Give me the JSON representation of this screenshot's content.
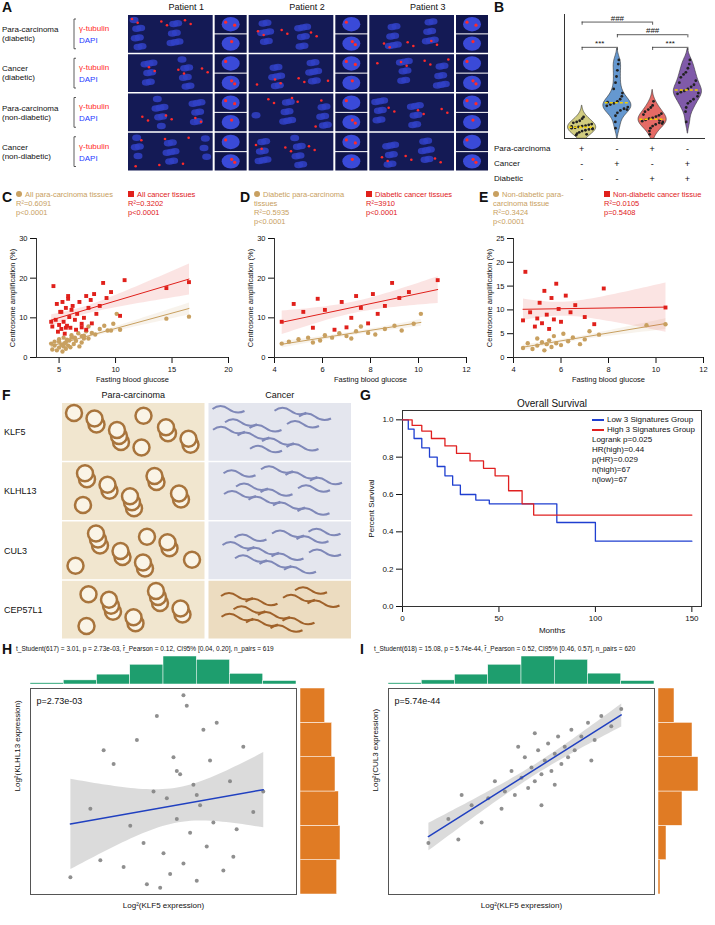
{
  "chart_data": [
    {
      "panel": "A",
      "type": "images",
      "columns": [
        "Patient 1",
        "Patient 2",
        "Patient 3"
      ],
      "rows": [
        "Para-carcinoma (diabetic)",
        "Cancer (diabetic)",
        "Para-carcinoma (non-diabetic)",
        "Cancer (non-diabetic)"
      ],
      "channels": [
        {
          "name": "γ-tubulin",
          "color": "#ff2a2a"
        },
        {
          "name": "DAPI",
          "color": "#2a3cff"
        }
      ]
    },
    {
      "panel": "B",
      "type": "violin",
      "ylim": [
        0,
        30
      ],
      "tick_labels": false,
      "groups": [
        {
          "color": "#c9c36a",
          "values": [
            0.8,
            1.2,
            1.5,
            1.8,
            2.0,
            2.2,
            2.3,
            2.5,
            2.6,
            2.8,
            3.0,
            3.1,
            3.3,
            3.5,
            3.8,
            4.0,
            4.3,
            4.8,
            5.2,
            1.0,
            2.4,
            2.9
          ]
        },
        {
          "color": "#4a86c8",
          "values": [
            2.5,
            4.0,
            5.5,
            6.2,
            6.8,
            7.2,
            7.6,
            7.9,
            8.2,
            8.5,
            9.0,
            9.5,
            10.2,
            11.0,
            12.0,
            13.5,
            15.0,
            16.5,
            18.0,
            19.0,
            7.0,
            8.8
          ]
        },
        {
          "color": "#e2504a",
          "values": [
            1.0,
            1.8,
            2.5,
            3.0,
            3.4,
            3.8,
            4.0,
            4.2,
            4.5,
            4.8,
            5.0,
            5.3,
            5.6,
            6.0,
            6.5,
            7.0,
            7.5,
            8.0,
            9.0,
            4.4,
            3.6,
            5.8
          ]
        },
        {
          "color": "#6a3d9a",
          "values": [
            4.0,
            6.5,
            7.5,
            8.5,
            9.0,
            9.5,
            10.2,
            10.8,
            11.2,
            11.5,
            12.0,
            12.5,
            13.0,
            14.0,
            14.8,
            15.5,
            16.0,
            17.0,
            18.0,
            19.0,
            11.0,
            13.5
          ]
        }
      ],
      "table": [
        {
          "label": "Para-carcinoma",
          "marks": [
            "+",
            "-",
            "+",
            "-"
          ]
        },
        {
          "label": "Cancer",
          "marks": [
            "-",
            "+",
            "-",
            "+"
          ]
        },
        {
          "label": "Diabetic",
          "marks": [
            "-",
            "-",
            "+",
            "+"
          ]
        }
      ],
      "comparisons": [
        {
          "from": 0,
          "to": 1,
          "label": "***"
        },
        {
          "from": 2,
          "to": 3,
          "label": "***"
        },
        {
          "from": 1,
          "to": 3,
          "label": "###"
        },
        {
          "from": 0,
          "to": 2,
          "label": "###"
        }
      ]
    },
    {
      "panel": "C",
      "type": "scatter",
      "xlabel": "Fasting blood glucose",
      "ylabel": "Centrosome amplification (%)",
      "xlim": [
        3,
        20
      ],
      "xticks": [
        5,
        10,
        15,
        20
      ],
      "ylim": [
        0,
        30
      ],
      "yticks": [
        0,
        10,
        20,
        30
      ],
      "series": [
        {
          "name": "All para-carcinoma tissues",
          "color": "#c8a060",
          "marker": "circle",
          "annotations": [
            "R²=0.6091",
            "p<0.0001"
          ],
          "x": [
            4.3,
            4.6,
            5.0,
            5.4,
            5.6,
            5.9,
            6.1,
            6.4,
            6.7,
            7.0,
            7.2,
            7.4,
            7.6,
            7.9,
            8.2,
            8.6,
            9.0,
            9.3,
            9.8,
            10.1,
            4.4,
            4.6,
            4.8,
            5.0,
            5.0,
            5.2,
            5.3,
            5.4,
            5.5,
            5.6,
            5.7,
            5.8,
            6.0,
            6.1,
            6.3,
            6.5,
            6.8,
            7.0,
            7.2,
            7.6,
            9.6,
            10.4,
            14.5,
            16.5
          ],
          "y": [
            3.5,
            4.0,
            4.6,
            5.0,
            3.8,
            4.3,
            5.6,
            5.0,
            6.1,
            5.4,
            4.8,
            6.6,
            7.8,
            6.2,
            5.8,
            7.2,
            8.0,
            6.8,
            8.5,
            11.0,
            2.0,
            3.0,
            1.8,
            2.5,
            4.0,
            3.2,
            1.5,
            2.8,
            3.6,
            2.2,
            4.5,
            3.0,
            2.6,
            5.0,
            3.4,
            4.2,
            2.8,
            3.8,
            5.5,
            4.8,
            6.8,
            7.0,
            9.8,
            10.3
          ]
        },
        {
          "name": "All cancer tissues",
          "color": "#e0201b",
          "marker": "square",
          "annotations": [
            "R²=0.3202",
            "p<0.0001"
          ],
          "x": [
            4.3,
            4.8,
            5.2,
            5.6,
            5.8,
            6.1,
            6.5,
            6.8,
            7.0,
            7.2,
            7.4,
            7.6,
            7.9,
            8.1,
            8.3,
            8.6,
            8.9,
            9.2,
            9.6,
            10.8,
            4.4,
            4.5,
            4.7,
            4.9,
            5.0,
            5.1,
            5.2,
            5.3,
            5.4,
            5.5,
            5.6,
            5.7,
            5.8,
            5.9,
            6.0,
            6.2,
            6.4,
            6.6,
            7.0,
            7.4,
            7.8,
            10.4,
            14.5,
            16.5
          ],
          "y": [
            9.0,
            13.5,
            11.5,
            7.5,
            14.8,
            12.0,
            7.0,
            14.0,
            7.6,
            10.0,
            15.5,
            12.5,
            8.6,
            16.0,
            11.0,
            13.0,
            18.8,
            15.0,
            16.5,
            19.5,
            7.8,
            18.0,
            9.5,
            6.5,
            8.2,
            11.5,
            7.2,
            14.0,
            9.0,
            6.0,
            12.5,
            8.0,
            15.5,
            10.2,
            7.5,
            13.0,
            9.5,
            11.0,
            8.5,
            7.0,
            14.5,
            10.5,
            17.5,
            19.0
          ]
        }
      ]
    },
    {
      "panel": "D",
      "type": "scatter",
      "xlabel": "Fasting blood glucose",
      "ylabel": "Centrosome amplification (%)",
      "xlim": [
        4,
        12
      ],
      "xticks": [
        4,
        6,
        8,
        10,
        12
      ],
      "ylim": [
        0,
        30
      ],
      "yticks": [
        0,
        10,
        20,
        30
      ],
      "series": [
        {
          "name": "Diabetic para-carcinoma tissues",
          "color": "#c8a060",
          "marker": "circle",
          "annotations": [
            "R²=0.5935",
            "p<0.0001"
          ],
          "x": [
            4.3,
            4.6,
            5.0,
            5.4,
            5.6,
            5.9,
            6.1,
            6.4,
            6.7,
            7.0,
            7.2,
            7.4,
            7.6,
            7.9,
            8.2,
            8.6,
            9.0,
            9.3,
            9.8,
            10.1
          ],
          "y": [
            3.5,
            4.0,
            4.6,
            5.0,
            3.8,
            4.3,
            5.6,
            5.0,
            6.1,
            5.4,
            4.8,
            6.6,
            7.8,
            6.2,
            5.8,
            7.2,
            8.0,
            6.8,
            8.5,
            11.0
          ]
        },
        {
          "name": "Diabetic cancer tissues",
          "color": "#e0201b",
          "marker": "square",
          "annotations": [
            "R²=3910",
            "p<0.0001"
          ],
          "x": [
            4.3,
            4.8,
            5.2,
            5.6,
            5.8,
            6.1,
            6.5,
            6.8,
            7.0,
            7.2,
            7.4,
            7.6,
            7.9,
            8.1,
            8.3,
            8.6,
            8.9,
            9.2,
            9.6,
            10.8
          ],
          "y": [
            9.0,
            13.5,
            11.5,
            7.5,
            14.8,
            12.0,
            7.0,
            14.0,
            7.6,
            10.0,
            15.5,
            12.5,
            8.6,
            16.0,
            11.0,
            13.0,
            18.8,
            15.0,
            16.5,
            19.5
          ]
        }
      ]
    },
    {
      "panel": "E",
      "type": "scatter",
      "xlabel": "Fasting blood glucose",
      "ylabel": "Centrosome amplification (%)",
      "xlim": [
        4,
        12
      ],
      "xticks": [
        4,
        6,
        8,
        10,
        12
      ],
      "ylim": [
        0,
        25
      ],
      "yticks": [
        0,
        5,
        10,
        15,
        20,
        25
      ],
      "series": [
        {
          "name": "Non-diabetic para-carcinoma tissue",
          "color": "#c8a060",
          "marker": "circle",
          "annotations": [
            "R²=0.3424",
            "p<0.0001"
          ],
          "x": [
            4.4,
            4.6,
            4.8,
            5.0,
            5.0,
            5.2,
            5.3,
            5.4,
            5.5,
            5.6,
            5.7,
            5.8,
            6.0,
            6.1,
            6.3,
            6.5,
            6.8,
            7.0,
            7.2,
            7.6,
            9.6,
            10.4
          ],
          "y": [
            2.0,
            3.0,
            1.8,
            2.5,
            4.0,
            3.2,
            1.5,
            2.8,
            3.6,
            2.2,
            4.5,
            3.0,
            2.6,
            5.0,
            3.4,
            4.2,
            2.8,
            3.8,
            5.5,
            4.8,
            6.8,
            7.0
          ]
        },
        {
          "name": "Non-diabetic cancer tissue",
          "color": "#e0201b",
          "marker": "square",
          "annotations": [
            "R²=0.0105",
            "p=0.5408"
          ],
          "x": [
            4.4,
            4.5,
            4.7,
            4.9,
            5.0,
            5.1,
            5.2,
            5.3,
            5.4,
            5.5,
            5.6,
            5.7,
            5.8,
            5.9,
            6.0,
            6.2,
            6.4,
            6.6,
            7.0,
            7.4,
            7.8,
            10.4
          ],
          "y": [
            7.8,
            18.0,
            9.5,
            6.5,
            8.2,
            11.5,
            7.2,
            14.0,
            9.0,
            6.0,
            12.5,
            8.0,
            15.5,
            10.2,
            7.5,
            13.0,
            9.5,
            11.0,
            8.5,
            7.0,
            14.5,
            10.5
          ]
        }
      ]
    },
    {
      "panel": "F",
      "type": "images",
      "columns": [
        "Para-carcinoma",
        "Cancer"
      ],
      "rows": [
        "KLF5",
        "KLHL13",
        "CUL3",
        "CEP57L1"
      ]
    },
    {
      "panel": "G",
      "type": "line",
      "title": "Overall Survival",
      "xlabel": "Months",
      "ylabel": "Percent Survival",
      "xlim": [
        0,
        155
      ],
      "xticks": [
        0,
        50,
        100,
        150
      ],
      "ylim": [
        0,
        1.05
      ],
      "yticks": [
        {
          "value": 0,
          "label": "0.0"
        },
        0.2,
        0.4,
        0.6,
        0.8,
        {
          "value": 1,
          "label": "1.0"
        }
      ],
      "legend": "top-right",
      "annotations": [
        "Logrank p=0.025",
        "HR(high)=0.44",
        "p(HR)=0.029",
        "n(high)=67",
        "n(low)=67"
      ],
      "series": [
        {
          "name": "Low 3 Signatures Group",
          "color": "#1f3fd0",
          "line_style": "step",
          "x": [
            0,
            3,
            6,
            10,
            14,
            18,
            22,
            26,
            30,
            38,
            45,
            70,
            80,
            100,
            150
          ],
          "values": [
            1.0,
            0.95,
            0.9,
            0.85,
            0.8,
            0.75,
            0.7,
            0.65,
            0.6,
            0.57,
            0.55,
            0.55,
            0.45,
            0.35,
            0.35
          ]
        },
        {
          "name": "High 3 Signatures Group",
          "color": "#e02020",
          "line_style": "step",
          "x": [
            0,
            5,
            10,
            15,
            22,
            28,
            35,
            42,
            48,
            55,
            62,
            68,
            100,
            150
          ],
          "values": [
            1.0,
            0.97,
            0.94,
            0.9,
            0.86,
            0.82,
            0.78,
            0.74,
            0.7,
            0.62,
            0.55,
            0.49,
            0.49,
            0.49
          ]
        }
      ]
    },
    {
      "panel": "H",
      "type": "correlation",
      "stats": "t_Student(617) = 3.01, p = 2.73e-03, r̂_Pearson = 0.12, CI95% [0.04, 0.20], n_pairs = 619",
      "annotation": "p=2.73e-03",
      "xlabel": "Log²(KLF5 expression)",
      "ylabel": "Log²(KLHL13 expression)",
      "xlim": [
        0,
        8
      ],
      "ylim": [
        0,
        6
      ],
      "tick_labels": false,
      "color": "#333333",
      "x": [
        1.2,
        1.8,
        2.1,
        2.5,
        2.8,
        3.0,
        3.2,
        3.4,
        3.5,
        3.7,
        3.8,
        4.0,
        4.1,
        4.2,
        4.3,
        4.4,
        4.5,
        4.6,
        4.7,
        4.8,
        4.9,
        5.0,
        5.1,
        5.2,
        5.3,
        5.4,
        5.5,
        5.6,
        5.8,
        6.0,
        6.2,
        6.4,
        6.7,
        7.0,
        3.9,
        4.6,
        5.0,
        2.2,
        6.1,
        4.4
      ],
      "y": [
        0.5,
        2.5,
        1.0,
        3.8,
        0.8,
        2.0,
        4.5,
        1.5,
        0.3,
        3.0,
        5.2,
        1.2,
        2.8,
        0.6,
        4.0,
        2.2,
        3.5,
        0.9,
        5.5,
        1.8,
        3.2,
        0.4,
        2.6,
        4.8,
        1.4,
        3.9,
        2.1,
        5.0,
        0.7,
        3.3,
        1.9,
        4.3,
        2.4,
        3.0,
        0.2,
        5.8,
        2.9,
        4.2,
        1.1,
        3.6
      ],
      "x_hist": {
        "bins": [
          0,
          1,
          2,
          3,
          4,
          5,
          6,
          7,
          8
        ],
        "counts": [
          8,
          25,
          60,
          120,
          170,
          150,
          65,
          21
        ],
        "color": "#1e9e6e"
      },
      "y_hist": {
        "bins": [
          0,
          1,
          2,
          3,
          4,
          5,
          6
        ],
        "counts": [
          110,
          120,
          115,
          105,
          95,
          74
        ],
        "color": "#e07b24"
      }
    },
    {
      "panel": "I",
      "type": "correlation",
      "stats": "t_Student(618) = 15.08, p = 5.74e-44, r̂_Pearson = 0.52, CI95% [0.46, 0.57], n_pairs = 620",
      "annotation": "p=5.74e-44",
      "xlabel": "Log²(KLF5 expression)",
      "ylabel": "Log²(CUL3 expression)",
      "xlim": [
        0,
        8
      ],
      "ylim": [
        2,
        8
      ],
      "tick_labels": false,
      "color": "#333333",
      "x": [
        1.2,
        1.8,
        2.1,
        2.5,
        2.8,
        3.0,
        3.2,
        3.4,
        3.5,
        3.7,
        3.8,
        4.0,
        4.1,
        4.2,
        4.3,
        4.4,
        4.5,
        4.6,
        4.7,
        4.8,
        4.9,
        5.0,
        5.1,
        5.2,
        5.3,
        5.4,
        5.5,
        5.6,
        5.8,
        6.0,
        6.2,
        6.4,
        6.7,
        7.0,
        3.9,
        4.6,
        5.0,
        2.2,
        6.1,
        4.4
      ],
      "y": [
        3.5,
        4.2,
        3.6,
        4.6,
        4.1,
        4.8,
        5.3,
        4.5,
        5.0,
        5.6,
        4.9,
        5.4,
        6.0,
        5.1,
        5.7,
        5.3,
        6.2,
        5.5,
        5.9,
        6.4,
        5.6,
        6.1,
        6.6,
        5.8,
        6.3,
        6.0,
        6.8,
        6.2,
        6.6,
        7.0,
        6.5,
        7.2,
        6.9,
        7.4,
        6.3,
        4.6,
        5.2,
        4.9,
        5.9,
        6.7
      ],
      "x_hist": {
        "bins": [
          0,
          1,
          2,
          3,
          4,
          5,
          6,
          7,
          8
        ],
        "counts": [
          8,
          25,
          60,
          120,
          170,
          150,
          66,
          21
        ],
        "color": "#1e9e6e"
      },
      "y_hist": {
        "bins": [
          2,
          3,
          4,
          5,
          6,
          7,
          8
        ],
        "counts": [
          10,
          40,
          120,
          200,
          170,
          80
        ],
        "color": "#e07b24"
      }
    }
  ]
}
